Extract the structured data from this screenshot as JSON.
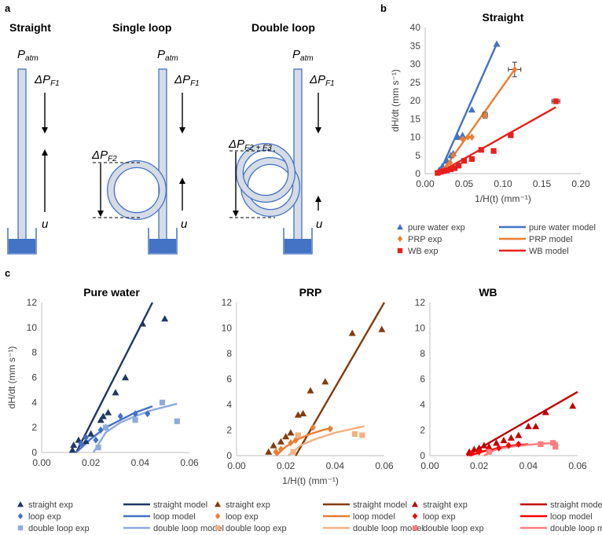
{
  "panel_a": {
    "letter": "a",
    "titles": [
      "Straight",
      "Single loop",
      "Double loop"
    ],
    "patm_base": "P",
    "patm_sub": "atm",
    "dpf1_base": "ΔP",
    "dpf1_sub": "F1",
    "dpf2_base": "ΔP",
    "dpf2_sub": "F2",
    "dpf23_base": "ΔP",
    "dpf23_sub": "F2 + F3",
    "u_label": "u",
    "colors": {
      "tube_fill": "#d6dce5",
      "tube_stroke": "#4472c4",
      "reservoir": "#4472c4"
    }
  },
  "chart_data": [
    {
      "panel": "b",
      "type": "scatter",
      "title": "Straight",
      "xlabel": "1/H(t) (mm⁻¹)",
      "ylabel": "dH/dt (mm s⁻¹)",
      "xlim": [
        0,
        0.2
      ],
      "ylim": [
        0,
        40
      ],
      "xticks": [
        "0.00",
        "0.05",
        "0.10",
        "0.15",
        "0.20"
      ],
      "yticks": [
        "0",
        "5",
        "10",
        "15",
        "20",
        "25",
        "30",
        "35",
        "40"
      ],
      "series": [
        {
          "name": "pure water exp",
          "kind": "points",
          "marker": "triangle",
          "color": "#4472c4",
          "x": [
            0.018,
            0.022,
            0.028,
            0.033,
            0.036,
            0.042,
            0.048,
            0.06,
            0.092
          ],
          "y": [
            1.0,
            2.0,
            3.5,
            5.0,
            5.5,
            10.0,
            10.5,
            17.5,
            35.5
          ]
        },
        {
          "name": "pure water model",
          "kind": "line",
          "color": "#4472c4",
          "x": [
            0.018,
            0.092
          ],
          "y": [
            0.0,
            35.5
          ]
        },
        {
          "name": "PRP exp",
          "kind": "points",
          "marker": "diamond",
          "color": "#ed7d31",
          "x": [
            0.02,
            0.024,
            0.028,
            0.032,
            0.036,
            0.048,
            0.055,
            0.06,
            0.077,
            0.115
          ],
          "y": [
            0.5,
            1.0,
            2.0,
            3.0,
            5.0,
            9.5,
            10.0,
            10.0,
            16.0,
            28.5
          ],
          "xerr": [
            0,
            0,
            0,
            0,
            0,
            0,
            0,
            0,
            0.003,
            0.008
          ],
          "yerr": [
            0,
            0,
            0,
            0,
            0,
            0,
            0,
            0,
            0.8,
            2.0
          ]
        },
        {
          "name": "PRP model",
          "kind": "line",
          "color": "#ed7d31",
          "x": [
            0.02,
            0.115
          ],
          "y": [
            0.0,
            28.5
          ]
        },
        {
          "name": "WB exp",
          "kind": "points",
          "marker": "square",
          "color": "#e8201c",
          "x": [
            0.016,
            0.02,
            0.024,
            0.028,
            0.033,
            0.038,
            0.043,
            0.05,
            0.06,
            0.072,
            0.088,
            0.11,
            0.168
          ],
          "y": [
            0.2,
            0.5,
            0.7,
            0.9,
            1.2,
            1.5,
            2.2,
            3.5,
            4.0,
            6.5,
            6.2,
            10.5,
            19.8
          ],
          "xerr": [
            0,
            0,
            0,
            0,
            0,
            0,
            0,
            0,
            0,
            0,
            0,
            0,
            0.005
          ],
          "yerr": [
            0,
            0,
            0,
            0,
            0,
            0,
            0,
            0,
            0,
            0,
            0,
            0,
            0.6
          ]
        },
        {
          "name": "WB model",
          "kind": "line",
          "color": "#e8201c",
          "x": [
            0.016,
            0.168
          ],
          "y": [
            0.0,
            18.2
          ]
        }
      ]
    },
    {
      "panel": "c",
      "type": "scatter",
      "title": "Pure water",
      "xlabel": "",
      "ylabel": "dH/dt (mm s⁻¹)",
      "xlim": [
        0,
        0.06
      ],
      "ylim": [
        0,
        12
      ],
      "xticks": [
        "0.00",
        "0.02",
        "0.04",
        "0.06"
      ],
      "yticks": [
        "0",
        "2",
        "4",
        "6",
        "8",
        "10",
        "12"
      ],
      "series": [
        {
          "name": "straight exp",
          "kind": "points",
          "marker": "triangle",
          "color": "#1f3864",
          "x": [
            0.0125,
            0.013,
            0.015,
            0.018,
            0.02,
            0.024,
            0.025,
            0.027,
            0.03,
            0.034,
            0.041,
            0.05
          ],
          "y": [
            0.2,
            0.6,
            1.0,
            0.9,
            1.5,
            2.6,
            2.9,
            3.2,
            4.8,
            6.0,
            10.3,
            10.7
          ]
        },
        {
          "name": "straight model",
          "kind": "line",
          "color": "#1f3864",
          "x": [
            0.014,
            0.045
          ],
          "y": [
            0.0,
            12.0
          ]
        },
        {
          "name": "loop exp",
          "kind": "points",
          "marker": "diamond",
          "color": "#4472c4",
          "x": [
            0.016,
            0.018,
            0.022,
            0.024,
            0.026,
            0.032,
            0.038,
            0.043
          ],
          "y": [
            0.7,
            1.2,
            1.0,
            1.8,
            2.0,
            2.9,
            3.1,
            3.1
          ]
        },
        {
          "name": "loop model",
          "kind": "line",
          "color": "#4472c4",
          "x": [
            0.014,
            0.02,
            0.026,
            0.032,
            0.038,
            0.045
          ],
          "y": [
            0.0,
            1.1,
            2.0,
            2.6,
            3.2,
            3.7
          ]
        },
        {
          "name": "double loop exp",
          "kind": "points",
          "marker": "square",
          "color": "#8faadc",
          "x": [
            0.023,
            0.026,
            0.038,
            0.049,
            0.055
          ],
          "y": [
            0.4,
            2.0,
            2.6,
            4.0,
            2.5
          ]
        },
        {
          "name": "double loop model",
          "kind": "line",
          "color": "#8faadc",
          "x": [
            0.021,
            0.026,
            0.032,
            0.038,
            0.045,
            0.055
          ],
          "y": [
            0.0,
            1.6,
            2.4,
            2.9,
            3.4,
            3.9
          ]
        }
      ]
    },
    {
      "panel": "c",
      "type": "scatter",
      "title": "PRP",
      "xlabel": "1/H(t) (mm⁻¹)",
      "ylabel": "",
      "xlim": [
        0,
        0.06
      ],
      "ylim": [
        0,
        12
      ],
      "xticks": [
        "0.00",
        "0.02",
        "0.04",
        "0.06"
      ],
      "yticks": [
        "0",
        "2",
        "4",
        "6",
        "8",
        "10",
        "12"
      ],
      "series": [
        {
          "name": "straight exp",
          "kind": "points",
          "marker": "triangle",
          "color": "#843c0c",
          "x": [
            0.013,
            0.015,
            0.018,
            0.02,
            0.022,
            0.025,
            0.027,
            0.03,
            0.036,
            0.047,
            0.059
          ],
          "y": [
            0.3,
            0.8,
            1.1,
            1.5,
            1.8,
            3.2,
            3.3,
            5.1,
            5.8,
            9.6,
            9.9
          ]
        },
        {
          "name": "straight model",
          "kind": "line",
          "color": "#843c0c",
          "x": [
            0.024,
            0.06
          ],
          "y": [
            0.0,
            12.0
          ]
        },
        {
          "name": "loop exp",
          "kind": "points",
          "marker": "diamond",
          "color": "#ed7d31",
          "x": [
            0.016,
            0.018,
            0.022,
            0.024,
            0.031,
            0.038
          ],
          "y": [
            0.3,
            0.5,
            1.0,
            1.2,
            2.2,
            2.1
          ]
        },
        {
          "name": "loop model",
          "kind": "line",
          "color": "#ed7d31",
          "x": [
            0.016,
            0.02,
            0.025,
            0.03,
            0.035,
            0.039
          ],
          "y": [
            0.0,
            0.7,
            1.3,
            1.7,
            2.0,
            2.2
          ]
        },
        {
          "name": "double loop exp",
          "kind": "points",
          "marker": "square",
          "color": "#f4b183",
          "x": [
            0.023,
            0.025,
            0.048,
            0.051
          ],
          "y": [
            0.3,
            1.6,
            1.7,
            1.6
          ]
        },
        {
          "name": "double loop model",
          "kind": "line",
          "color": "#f4b183",
          "x": [
            0.021,
            0.026,
            0.032,
            0.04,
            0.047,
            0.052
          ],
          "y": [
            0.0,
            0.8,
            1.3,
            1.8,
            2.1,
            2.3
          ]
        }
      ]
    },
    {
      "panel": "c",
      "type": "scatter",
      "title": "WB",
      "xlabel": "",
      "ylabel": "",
      "xlim": [
        0,
        0.06
      ],
      "ylim": [
        0,
        12
      ],
      "xticks": [
        "0.00",
        "0.02",
        "0.04",
        "0.06"
      ],
      "yticks": [
        "0",
        "2",
        "4",
        "6",
        "8",
        "10",
        "12"
      ],
      "series": [
        {
          "name": "straight exp",
          "kind": "points",
          "marker": "triangle",
          "color": "#c00000",
          "x": [
            0.016,
            0.018,
            0.02,
            0.022,
            0.024,
            0.027,
            0.03,
            0.033,
            0.036,
            0.04,
            0.043,
            0.047,
            0.058
          ],
          "y": [
            0.3,
            0.5,
            0.6,
            0.8,
            0.7,
            1.0,
            1.2,
            1.4,
            1.6,
            2.3,
            2.3,
            3.4,
            3.9
          ]
        },
        {
          "name": "straight model",
          "kind": "line",
          "color": "#c00000",
          "x": [
            0.015,
            0.06
          ],
          "y": [
            0.0,
            5.0
          ]
        },
        {
          "name": "loop exp",
          "kind": "points",
          "marker": "diamond",
          "color": "#ff0000",
          "x": [
            0.017,
            0.02,
            0.024,
            0.028,
            0.032,
            0.036
          ],
          "y": [
            0.2,
            0.3,
            0.4,
            0.6,
            0.8,
            0.9
          ]
        },
        {
          "name": "loop model",
          "kind": "line",
          "color": "#ff0000",
          "x": [
            0.016,
            0.022,
            0.028,
            0.034,
            0.04
          ],
          "y": [
            0.0,
            0.35,
            0.6,
            0.8,
            0.9
          ]
        },
        {
          "name": "double loop exp",
          "kind": "points",
          "marker": "square",
          "color": "#ff7c80",
          "x": [
            0.024,
            0.045,
            0.05,
            0.051
          ],
          "y": [
            0.3,
            0.9,
            1.0,
            0.7
          ]
        },
        {
          "name": "double loop model",
          "kind": "line",
          "color": "#ff7c80",
          "x": [
            0.022,
            0.027,
            0.033,
            0.04,
            0.046,
            0.052
          ],
          "y": [
            0.0,
            0.5,
            0.7,
            0.85,
            0.95,
            1.0
          ]
        }
      ]
    }
  ],
  "panel_b_letter": "b",
  "panel_c_letter": "c",
  "legend_b": {
    "items": [
      {
        "label": "pure water exp",
        "kind": "marker",
        "marker": "triangle",
        "color": "#4472c4"
      },
      {
        "label": "pure water model",
        "kind": "line",
        "color": "#4472c4"
      },
      {
        "label": "PRP exp",
        "kind": "marker",
        "marker": "diamond",
        "color": "#ed7d31"
      },
      {
        "label": "PRP model",
        "kind": "line",
        "color": "#ed7d31"
      },
      {
        "label": "WB exp",
        "kind": "marker",
        "marker": "square",
        "color": "#e8201c"
      },
      {
        "label": "WB model",
        "kind": "line",
        "color": "#e8201c"
      }
    ]
  },
  "legend_c": [
    [
      {
        "label": "straight exp",
        "kind": "marker",
        "marker": "triangle",
        "color": "#1f3864"
      },
      {
        "label": "straight model",
        "kind": "line",
        "color": "#1f3864"
      },
      {
        "label": "loop exp",
        "kind": "marker",
        "marker": "diamond",
        "color": "#4472c4"
      },
      {
        "label": "loop model",
        "kind": "line",
        "color": "#4472c4"
      },
      {
        "label": "double loop exp",
        "kind": "marker",
        "marker": "square",
        "color": "#8faadc"
      },
      {
        "label": "double loop model",
        "kind": "line",
        "color": "#8faadc"
      }
    ],
    [
      {
        "label": "straight exp",
        "kind": "marker",
        "marker": "triangle",
        "color": "#843c0c"
      },
      {
        "label": "straight model",
        "kind": "line",
        "color": "#843c0c"
      },
      {
        "label": "loop exp",
        "kind": "marker",
        "marker": "diamond",
        "color": "#ed7d31"
      },
      {
        "label": "loop model",
        "kind": "line",
        "color": "#ed7d31"
      },
      {
        "label": "double loop exp",
        "kind": "marker",
        "marker": "square",
        "color": "#f4b183"
      },
      {
        "label": "double loop model",
        "kind": "line",
        "color": "#f4b183"
      }
    ],
    [
      {
        "label": "straight exp",
        "kind": "marker",
        "marker": "triangle",
        "color": "#c00000"
      },
      {
        "label": "straight model",
        "kind": "line",
        "color": "#c00000"
      },
      {
        "label": "loop exp",
        "kind": "marker",
        "marker": "diamond",
        "color": "#ff0000"
      },
      {
        "label": "loop model",
        "kind": "line",
        "color": "#ff0000"
      },
      {
        "label": "double loop exp",
        "kind": "marker",
        "marker": "square",
        "color": "#ff7c80"
      },
      {
        "label": "double loop model",
        "kind": "line",
        "color": "#ff7c80"
      }
    ]
  ]
}
